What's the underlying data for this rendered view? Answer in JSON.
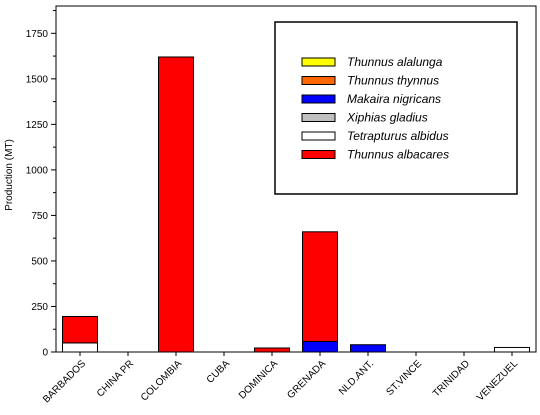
{
  "chart_data": {
    "type": "bar",
    "stacked": true,
    "title": "",
    "xlabel": "",
    "ylabel": "Production (MT)",
    "ylim": [
      0,
      1900
    ],
    "yticks": [
      0,
      250,
      500,
      750,
      1000,
      1250,
      1500,
      1750
    ],
    "grid": false,
    "legend_position": "top-right",
    "categories": [
      "BARBADOS",
      "CHINA PR",
      "COLOMBIA",
      "CUBA",
      "DOMINICA",
      "GRENADA",
      "NLD.ANT.",
      "ST.VINCE",
      "TRINIDAD",
      "VENEZUEL"
    ],
    "series": [
      {
        "name": "Thunnus alalunga",
        "color": "#ffff00",
        "values": [
          0,
          0,
          0,
          0,
          0,
          0,
          0,
          0,
          0,
          0
        ]
      },
      {
        "name": "Thunnus thynnus",
        "color": "#ff6600",
        "values": [
          0,
          0,
          0,
          0,
          0,
          0,
          0,
          0,
          0,
          0
        ]
      },
      {
        "name": "Makaira nigricans",
        "color": "#0000ff",
        "values": [
          0,
          0,
          0,
          0,
          0,
          58,
          40,
          0,
          0,
          0
        ]
      },
      {
        "name": "Xiphias gladius",
        "color": "#c0c0c0",
        "values": [
          0,
          0,
          0,
          0,
          0,
          0,
          0,
          0,
          0,
          0
        ]
      },
      {
        "name": "Tetrapturus albidus",
        "color": "#ffffff",
        "values": [
          50,
          0,
          0,
          0,
          0,
          0,
          0,
          0,
          0,
          25
        ]
      },
      {
        "name": "Thunnus albacares",
        "color": "#ff0000",
        "values": [
          145,
          0,
          1620,
          0,
          22,
          602,
          0,
          0,
          0,
          0
        ]
      }
    ],
    "legend_order": [
      "Thunnus alalunga",
      "Thunnus thynnus",
      "Makaira nigricans",
      "Xiphias gladius",
      "Tetrapturus albidus",
      "Thunnus albacares"
    ]
  }
}
